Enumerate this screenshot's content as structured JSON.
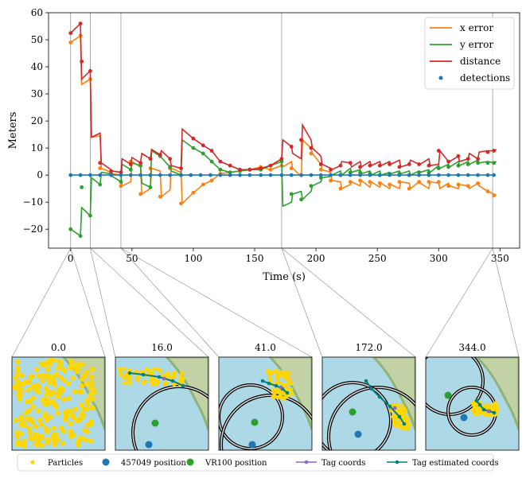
{
  "chart_data": {
    "type": "line",
    "xlabel": "Time (s)",
    "ylabel": "Meters",
    "xlim": [
      -18,
      366
    ],
    "ylim": [
      -27,
      60
    ],
    "xticks": [
      0,
      50,
      100,
      150,
      200,
      250,
      300,
      350
    ],
    "yticks": [
      -20,
      -10,
      0,
      10,
      20,
      30,
      40,
      50,
      60
    ],
    "marker_times": [
      0,
      16,
      41,
      172,
      344
    ],
    "legend_position": "top-right",
    "series": [
      {
        "name": "x error",
        "color": "#ff7f0e",
        "x": [
          0,
          8,
          9,
          16,
          17,
          24,
          25,
          33,
          34,
          41,
          42,
          49,
          50,
          57,
          58,
          65,
          66,
          73,
          74,
          81,
          82,
          90,
          91,
          100,
          108,
          115,
          122,
          130,
          138,
          146,
          155,
          163,
          172,
          173,
          180,
          181,
          188,
          189,
          196,
          197,
          204,
          205,
          212,
          213,
          220,
          221,
          228,
          229,
          236,
          237,
          244,
          245,
          252,
          253,
          260,
          261,
          268,
          269,
          276,
          277,
          284,
          285,
          292,
          293,
          300,
          301,
          308,
          309,
          316,
          317,
          324,
          325,
          332,
          333,
          340,
          345,
          347
        ],
        "y": [
          49,
          51.5,
          33.5,
          35.5,
          14,
          14.5,
          2.5,
          1,
          0.5,
          0,
          -4,
          -2.5,
          5,
          3,
          -7,
          -5,
          2.5,
          1.5,
          -8,
          -5.5,
          2.5,
          1,
          -10.5,
          -6.5,
          -3.5,
          -2,
          0.5,
          1,
          1.5,
          2,
          3,
          2,
          3.5,
          3,
          5,
          2.5,
          -0.5,
          13,
          10,
          8,
          4,
          2,
          1,
          -2,
          -2.5,
          -5,
          -3.5,
          -2.5,
          -4,
          -2,
          -4.5,
          -2.5,
          -4.5,
          -3,
          -5,
          -3.5,
          -5,
          -2.5,
          -3,
          -5,
          -2.5,
          -3,
          -5,
          -2.5,
          -3,
          -5,
          -3,
          -4,
          -5,
          -3.5,
          -4,
          -5,
          -3,
          -4,
          -6,
          -7,
          -7.5
        ]
      },
      {
        "name": "y error",
        "color": "#2ca02c",
        "x": [
          0,
          8,
          9,
          16,
          17,
          24,
          25,
          33,
          34,
          41,
          42,
          49,
          50,
          57,
          58,
          65,
          66,
          73,
          74,
          81,
          82,
          90,
          91,
          100,
          108,
          115,
          122,
          130,
          138,
          146,
          155,
          163,
          172,
          173,
          180,
          181,
          188,
          189,
          196,
          197,
          204,
          205,
          212,
          213,
          220,
          221,
          228,
          229,
          236,
          237,
          244,
          245,
          252,
          253,
          260,
          261,
          268,
          269,
          276,
          277,
          284,
          285,
          292,
          293,
          300,
          301,
          308,
          309,
          316,
          317,
          324,
          325,
          332,
          333,
          340,
          345,
          347
        ],
        "y": [
          -20,
          -22.5,
          -12,
          -15,
          -1,
          -3.5,
          1,
          0.5,
          -0.5,
          -2.5,
          4,
          2,
          4.5,
          3.5,
          -3,
          -4.5,
          9,
          7,
          6.5,
          3,
          1.5,
          0,
          13,
          10,
          8,
          5,
          2,
          1,
          1.5,
          2,
          2,
          3.5,
          5,
          -11.5,
          -10,
          -7,
          -6,
          -9,
          -6,
          -4,
          -2.5,
          -1,
          -0.5,
          0,
          1.5,
          0,
          2.5,
          1,
          2,
          0.5,
          1.5,
          0,
          1.5,
          0,
          1,
          0.5,
          1.5,
          0.5,
          1.5,
          0,
          1.5,
          1,
          2,
          1,
          3.5,
          2.5,
          4,
          3,
          5,
          3.5,
          5,
          4,
          5.5,
          4.5,
          5,
          4.5,
          5
        ]
      },
      {
        "name": "distance",
        "color": "#d62728",
        "x": [
          0,
          8,
          9,
          16,
          17,
          24,
          25,
          33,
          34,
          41,
          42,
          49,
          50,
          57,
          58,
          65,
          66,
          73,
          74,
          81,
          82,
          90,
          91,
          100,
          108,
          115,
          122,
          130,
          138,
          146,
          155,
          163,
          172,
          173,
          180,
          181,
          188,
          189,
          196,
          197,
          204,
          205,
          212,
          213,
          220,
          221,
          228,
          229,
          236,
          237,
          244,
          245,
          252,
          253,
          260,
          261,
          268,
          269,
          276,
          277,
          284,
          285,
          292,
          293,
          300,
          301,
          308,
          309,
          316,
          317,
          324,
          325,
          332,
          333,
          340,
          345,
          347
        ],
        "y": [
          52.5,
          56,
          35.5,
          38.5,
          14,
          15.5,
          4.5,
          2,
          1.5,
          1,
          6,
          4,
          6.5,
          4.5,
          8,
          6,
          9.5,
          7.5,
          9,
          6,
          3.5,
          2.5,
          17,
          13.5,
          11,
          9,
          5,
          3.5,
          2,
          2,
          2.5,
          3.5,
          6,
          13,
          10.5,
          8,
          6,
          18.5,
          13,
          10,
          7,
          4,
          2.5,
          2,
          3.5,
          5,
          4.5,
          3,
          5,
          3,
          5,
          3.5,
          5,
          3.5,
          5,
          4,
          5.5,
          3,
          4,
          5.5,
          4,
          4,
          6,
          3.5,
          4,
          9,
          5,
          5,
          7,
          5,
          6,
          8,
          6,
          8.5,
          9,
          9,
          9.5
        ]
      },
      {
        "name": "detections",
        "color": "#1f77b4",
        "x": [
          0,
          8,
          16,
          24,
          33,
          41,
          49,
          57,
          65,
          73,
          81,
          90,
          98,
          106,
          114,
          122,
          130,
          138,
          146,
          155,
          163,
          172,
          180,
          188,
          196,
          204,
          212,
          220,
          228,
          236,
          244,
          252,
          260,
          268,
          276,
          284,
          292,
          300,
          308,
          316,
          324,
          332,
          340,
          345
        ],
        "y": [
          0,
          0,
          0,
          0,
          0,
          0,
          0,
          0,
          0,
          0,
          0,
          0,
          0,
          0,
          0,
          0,
          0,
          0,
          0,
          0,
          0,
          0,
          0,
          0,
          0,
          0,
          0,
          0,
          0,
          0,
          0,
          0,
          0,
          0,
          0,
          0,
          0,
          0,
          0,
          0,
          0,
          0,
          0,
          0
        ]
      }
    ],
    "marker_points": {
      "x error": {
        "x": [
          0,
          8,
          16,
          24,
          33,
          41,
          49,
          57,
          65,
          73,
          81,
          90,
          100,
          108,
          115,
          122,
          130,
          138,
          146,
          155,
          163,
          172,
          180,
          188,
          196,
          204,
          212,
          220,
          228,
          236,
          244,
          252,
          260,
          268,
          276,
          284,
          292,
          300,
          308,
          316,
          324,
          332,
          340,
          345
        ],
        "y": [
          49,
          51.5,
          35.5,
          2.5,
          0.5,
          -4,
          5,
          -7,
          2.5,
          -8,
          2.5,
          -10.5,
          -6.5,
          -3.5,
          -2,
          0.5,
          1,
          1.5,
          2,
          3,
          2,
          3.5,
          2.5,
          13,
          8,
          2,
          -2,
          -5,
          -2.5,
          -2,
          -2.5,
          -3,
          -3.5,
          -2.5,
          -5,
          -2.5,
          -2.5,
          -2.5,
          -4,
          -3.5,
          -4,
          -3,
          -6,
          -7.5
        ]
      },
      "y error": {
        "x": [
          0,
          8,
          9,
          16,
          24,
          33,
          41,
          49,
          57,
          65,
          73,
          81,
          90,
          100,
          108,
          115,
          122,
          130,
          138,
          146,
          155,
          163,
          172,
          180,
          188,
          196,
          204,
          212,
          220,
          228,
          236,
          244,
          252,
          260,
          268,
          276,
          284,
          292,
          300,
          308,
          316,
          324,
          332,
          340,
          345
        ],
        "y": [
          -20,
          -22.5,
          -4.5,
          -15,
          -3.5,
          0.5,
          -2.5,
          2,
          3.5,
          -4.5,
          7,
          3,
          0,
          10,
          8,
          5,
          2,
          1,
          1.5,
          2,
          2,
          3.5,
          5,
          -7,
          -9,
          -4,
          -1,
          0,
          0,
          1,
          1,
          0.5,
          0,
          0.5,
          0.5,
          0,
          1,
          1,
          2.5,
          3,
          3.5,
          4,
          4.5,
          4.5,
          4.5
        ]
      },
      "distance": {
        "x": [
          0,
          8,
          9,
          16,
          24,
          33,
          41,
          49,
          57,
          65,
          73,
          81,
          90,
          100,
          108,
          115,
          122,
          130,
          138,
          146,
          155,
          163,
          172,
          180,
          188,
          196,
          204,
          212,
          220,
          228,
          236,
          244,
          252,
          260,
          268,
          276,
          284,
          292,
          300,
          308,
          316,
          324,
          332,
          340,
          345
        ],
        "y": [
          52.5,
          56,
          42,
          38.5,
          4.5,
          1.5,
          1,
          4,
          4.5,
          6,
          7.5,
          6,
          2.5,
          13.5,
          11,
          9,
          5,
          3.5,
          2,
          2,
          2.5,
          3.5,
          6,
          10.5,
          13,
          10,
          4,
          2,
          3.5,
          4.5,
          3,
          3.5,
          3.5,
          4,
          3,
          4,
          4,
          3.5,
          9,
          5,
          7,
          6,
          6,
          8.5,
          9
        ]
      }
    }
  },
  "insets": [
    {
      "title": "0.0"
    },
    {
      "title": "16.0"
    },
    {
      "title": "41.0"
    },
    {
      "title": "172.0"
    },
    {
      "title": "344.0"
    }
  ],
  "bottom_legend": [
    {
      "label": "Particles",
      "color": "#ffd700",
      "kind": "dot-small"
    },
    {
      "label": "457049 position",
      "color": "#1f77b4",
      "kind": "dot"
    },
    {
      "label": "VR100 position",
      "color": "#2ca02c",
      "kind": "dot"
    },
    {
      "label": "Tag coords",
      "color": "#9467bd",
      "kind": "line-dot"
    },
    {
      "label": "Tag estimated coords",
      "color": "#008080",
      "kind": "line-dot"
    }
  ],
  "colors": {
    "water": "#add8e6",
    "land": "#c2d2a6",
    "shore": "#8fb377"
  }
}
